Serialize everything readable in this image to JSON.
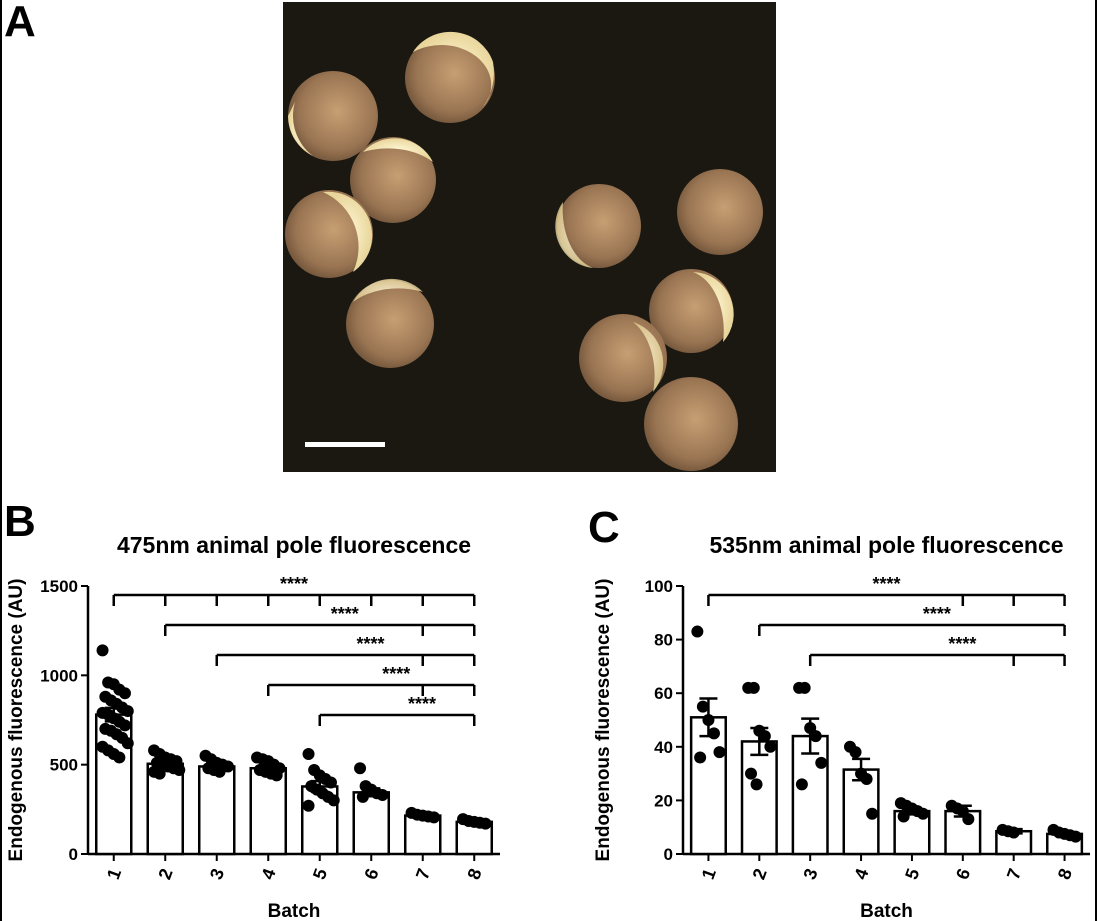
{
  "figure": {
    "panel_labels": [
      "A",
      "B",
      "C"
    ],
    "photo": {
      "description_icon": "xenopus-embryos-photo",
      "background": "#1b1812"
    }
  },
  "chart_data": [
    {
      "type": "bar",
      "panel": "B",
      "title": "475nm animal pole fluorescence",
      "xlabel": "Batch",
      "ylabel": "Endogenous fluorescence (AU)",
      "categories": [
        "1",
        "2",
        "3",
        "4",
        "5",
        "6",
        "7",
        "8"
      ],
      "values": [
        780,
        505,
        490,
        480,
        378,
        345,
        215,
        180
      ],
      "errors": [
        38,
        15,
        12,
        16,
        30,
        22,
        8,
        6
      ],
      "ylim": [
        0,
        1500
      ],
      "yticks": [
        "0",
        "500",
        "1000",
        "1500"
      ],
      "points": [
        [
          1140,
          960,
          950,
          920,
          900,
          880,
          860,
          840,
          820,
          800,
          790,
          780,
          760,
          740,
          720,
          700,
          690,
          670,
          650,
          620,
          600,
          580,
          560,
          540
        ],
        [
          580,
          560,
          540,
          530,
          520,
          510,
          500,
          490,
          480,
          470,
          460,
          450
        ],
        [
          550,
          530,
          510,
          500,
          490,
          480,
          470,
          460
        ],
        [
          540,
          530,
          520,
          500,
          480,
          470,
          460,
          450,
          440
        ],
        [
          560,
          470,
          440,
          420,
          400,
          380,
          360,
          340,
          320,
          300,
          270
        ],
        [
          480,
          380,
          360,
          340,
          330,
          320
        ],
        [
          230,
          220,
          215,
          210,
          205
        ],
        [
          195,
          185,
          180,
          175,
          170
        ]
      ],
      "significance": [
        {
          "from": "1",
          "to": "8",
          "label": "****",
          "ticks": [
            "1",
            "2",
            "3",
            "4",
            "5",
            "6",
            "7",
            "8"
          ]
        },
        {
          "from": "2",
          "to": "8",
          "label": "****",
          "ticks": [
            "2",
            "7",
            "8"
          ]
        },
        {
          "from": "3",
          "to": "8",
          "label": "****",
          "ticks": [
            "3",
            "7",
            "8"
          ]
        },
        {
          "from": "4",
          "to": "8",
          "label": "****",
          "ticks": [
            "4",
            "7",
            "8"
          ]
        },
        {
          "from": "5",
          "to": "8",
          "label": "****",
          "ticks": [
            "5",
            "8"
          ]
        }
      ]
    },
    {
      "type": "bar",
      "panel": "C",
      "title": "535nm animal pole fluorescence",
      "xlabel": "Batch",
      "ylabel": "Endogenous fluorescence (AU)",
      "categories": [
        "1",
        "2",
        "3",
        "4",
        "5",
        "6",
        "7",
        "8"
      ],
      "values": [
        51,
        42,
        44,
        31.5,
        16,
        16,
        8.5,
        7.5
      ],
      "errors": [
        7,
        5,
        6.5,
        4,
        1.2,
        2,
        0.8,
        0.7
      ],
      "ylim": [
        0,
        100
      ],
      "yticks": [
        "0",
        "20",
        "40",
        "60",
        "80",
        "100"
      ],
      "points": [
        [
          83,
          55,
          50,
          45,
          38,
          36
        ],
        [
          62,
          62,
          46,
          44,
          40,
          30,
          26
        ],
        [
          62,
          62,
          47,
          44,
          34,
          26
        ],
        [
          40,
          38,
          30,
          28,
          15
        ],
        [
          19,
          18,
          17,
          16,
          15,
          14
        ],
        [
          18,
          17,
          16,
          13
        ],
        [
          9,
          8.5,
          8
        ],
        [
          9,
          8,
          7.5,
          7,
          6.5
        ]
      ],
      "significance": [
        {
          "from": "1",
          "to": "8",
          "label": "****",
          "ticks": [
            "1",
            "6",
            "7",
            "8"
          ]
        },
        {
          "from": "2",
          "to": "8",
          "label": "****",
          "ticks": [
            "2",
            "8"
          ]
        },
        {
          "from": "3",
          "to": "8",
          "label": "****",
          "ticks": [
            "3",
            "7",
            "8"
          ]
        }
      ]
    }
  ]
}
